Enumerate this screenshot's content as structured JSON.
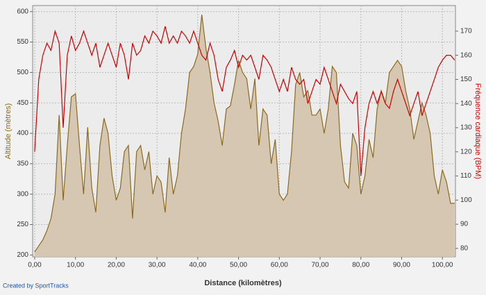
{
  "chart_data": {
    "type": "area-line",
    "xlabel": "Distance (kilomètres)",
    "ylabel": "Altitude (mètres)",
    "y2label": "Fréquence cardiaque (BPM)",
    "credit": "Created by SportTracks",
    "xlim": [
      -0.5,
      103.2
    ],
    "xticks": [
      {
        "value": 0,
        "label": "0,00"
      },
      {
        "value": 10,
        "label": "10,00"
      },
      {
        "value": 20,
        "label": "20,00"
      },
      {
        "value": 30,
        "label": "30,00"
      },
      {
        "value": 40,
        "label": "40,00"
      },
      {
        "value": 50,
        "label": "50,00"
      },
      {
        "value": 60,
        "label": "60,00"
      },
      {
        "value": 70,
        "label": "70,00"
      },
      {
        "value": 80,
        "label": "80,00"
      },
      {
        "value": 90,
        "label": "90,00"
      },
      {
        "value": 100,
        "label": "100,00"
      }
    ],
    "ylim": [
      197,
      610
    ],
    "yticks": [
      200,
      250,
      300,
      350,
      400,
      450,
      500,
      550,
      600
    ],
    "y2lim": [
      76.5,
      180.6
    ],
    "y2ticks": [
      80,
      90,
      100,
      110,
      120,
      130,
      140,
      150,
      160,
      170
    ],
    "grid": true,
    "x": [
      0,
      1,
      2,
      3,
      4,
      5,
      6,
      7,
      8,
      9,
      10,
      11,
      12,
      13,
      14,
      15,
      16,
      17,
      18,
      19,
      20,
      21,
      22,
      23,
      24,
      25,
      26,
      27,
      28,
      29,
      30,
      31,
      32,
      33,
      34,
      35,
      36,
      37,
      38,
      39,
      40,
      41,
      42,
      43,
      44,
      45,
      46,
      47,
      48,
      49,
      50,
      51,
      52,
      53,
      54,
      55,
      56,
      57,
      58,
      59,
      60,
      61,
      62,
      63,
      64,
      65,
      66,
      67,
      68,
      69,
      70,
      71,
      72,
      73,
      74,
      75,
      76,
      77,
      78,
      79,
      80,
      81,
      82,
      83,
      84,
      85,
      86,
      87,
      88,
      89,
      90,
      91,
      92,
      93,
      94,
      95,
      96,
      97,
      98,
      99,
      100,
      101,
      102,
      103
    ],
    "series": [
      {
        "name": "Altitude",
        "color": "#8b6a1f",
        "fill": "#d6c7b2",
        "axis": "y",
        "values": [
          205,
          215,
          225,
          240,
          260,
          300,
          430,
          290,
          380,
          460,
          465,
          380,
          300,
          410,
          310,
          270,
          380,
          425,
          400,
          330,
          290,
          310,
          370,
          380,
          260,
          370,
          380,
          340,
          370,
          300,
          330,
          320,
          270,
          360,
          300,
          330,
          400,
          440,
          500,
          510,
          530,
          595,
          540,
          500,
          450,
          420,
          380,
          440,
          445,
          480,
          520,
          500,
          490,
          440,
          490,
          380,
          440,
          430,
          350,
          390,
          300,
          290,
          300,
          370,
          480,
          500,
          460,
          470,
          430,
          430,
          440,
          400,
          440,
          510,
          500,
          380,
          320,
          310,
          400,
          380,
          300,
          330,
          390,
          360,
          440,
          470,
          450,
          500,
          510,
          520,
          510,
          470,
          440,
          390,
          420,
          450,
          430,
          400,
          330,
          300,
          340,
          320,
          285,
          285
        ]
      },
      {
        "name": "Fréquence cardiaque",
        "color": "#cc0000",
        "axis": "y2",
        "values": [
          120,
          150,
          160,
          165,
          162,
          170,
          165,
          130,
          160,
          168,
          162,
          165,
          170,
          165,
          160,
          165,
          155,
          160,
          165,
          160,
          155,
          165,
          160,
          150,
          165,
          160,
          162,
          168,
          165,
          170,
          168,
          165,
          172,
          165,
          168,
          165,
          170,
          168,
          165,
          170,
          165,
          160,
          158,
          165,
          160,
          150,
          145,
          155,
          158,
          162,
          155,
          160,
          158,
          160,
          155,
          150,
          160,
          158,
          155,
          150,
          145,
          150,
          145,
          155,
          150,
          148,
          150,
          140,
          145,
          150,
          148,
          155,
          150,
          145,
          140,
          148,
          145,
          142,
          140,
          145,
          110,
          130,
          140,
          145,
          140,
          145,
          140,
          138,
          145,
          150,
          145,
          140,
          135,
          140,
          145,
          135,
          140,
          145,
          150,
          155,
          158,
          160,
          160,
          158
        ]
      }
    ]
  }
}
